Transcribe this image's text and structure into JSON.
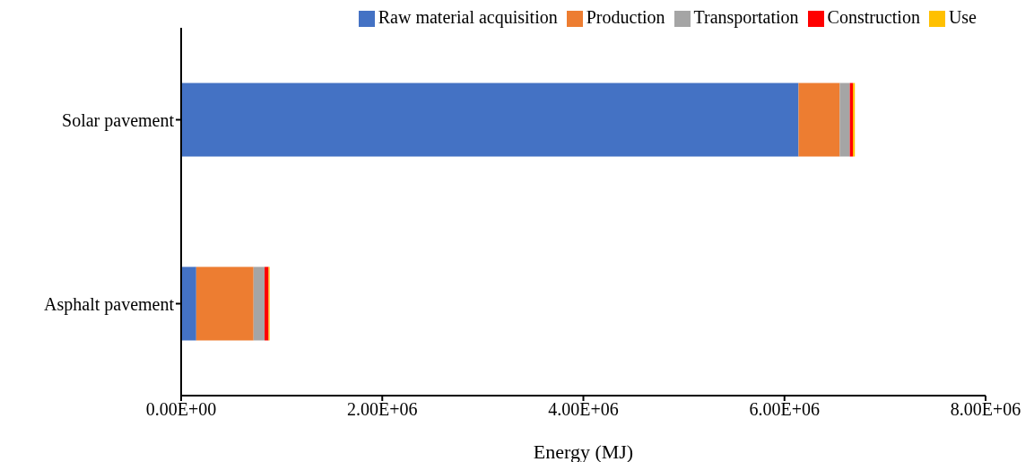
{
  "chart_data": {
    "type": "bar",
    "orientation": "horizontal",
    "stacked": true,
    "xlabel": "Energy (MJ)",
    "categories": [
      "Solar pavement",
      "Asphalt pavement"
    ],
    "series": [
      {
        "name": "Raw material acquisition",
        "color": "#4472c4",
        "values": [
          6140000,
          150000
        ]
      },
      {
        "name": "Production",
        "color": "#ed7d31",
        "values": [
          410000,
          570000
        ]
      },
      {
        "name": "Transportation",
        "color": "#a5a5a5",
        "values": [
          100000,
          110000
        ]
      },
      {
        "name": "Construction",
        "color": "#ff0000",
        "values": [
          30000,
          40000
        ]
      },
      {
        "name": "Use",
        "color": "#ffc000",
        "values": [
          20000,
          10000
        ]
      }
    ],
    "xlim": [
      0,
      8000000
    ],
    "xticks": [
      {
        "value": 0,
        "label": "0.00E+00"
      },
      {
        "value": 2000000,
        "label": "2.00E+06"
      },
      {
        "value": 4000000,
        "label": "4.00E+06"
      },
      {
        "value": 6000000,
        "label": "6.00E+06"
      },
      {
        "value": 8000000,
        "label": "8.00E+06"
      }
    ],
    "grid": false,
    "legend": "top right"
  }
}
